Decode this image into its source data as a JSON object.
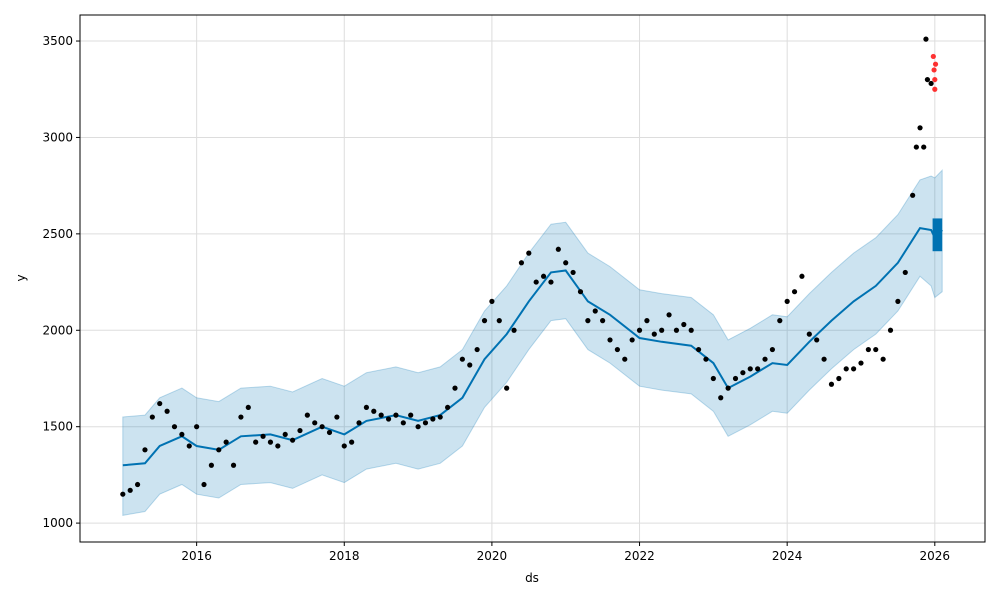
{
  "chart_data": {
    "type": "line",
    "title": "",
    "xlabel": "ds",
    "ylabel": "y",
    "xlim": [
      2014.42,
      2026.68
    ],
    "ylim": [
      902,
      3635
    ],
    "grid": true,
    "x_ticks": [
      2016,
      2018,
      2020,
      2022,
      2024,
      2026
    ],
    "x_tick_labels": [
      "2016",
      "2018",
      "2020",
      "2022",
      "2024",
      "2026"
    ],
    "y_ticks": [
      1000,
      1500,
      2000,
      2500,
      3000,
      3500
    ],
    "y_tick_labels": [
      "1000",
      "1500",
      "2000",
      "2500",
      "3000",
      "3500"
    ],
    "colors": {
      "forecast": "#0072B2",
      "band": "#0072B2",
      "observed": "#000000",
      "recent": "#ff0000"
    },
    "forecast": {
      "x": [
        2015.0,
        2015.3,
        2015.5,
        2015.8,
        2016.0,
        2016.3,
        2016.6,
        2017.0,
        2017.3,
        2017.7,
        2018.0,
        2018.3,
        2018.7,
        2019.0,
        2019.3,
        2019.6,
        2019.9,
        2020.2,
        2020.5,
        2020.8,
        2021.0,
        2021.3,
        2021.6,
        2022.0,
        2022.3,
        2022.7,
        2023.0,
        2023.2,
        2023.5,
        2023.8,
        2024.0,
        2024.3,
        2024.6,
        2024.9,
        2025.2,
        2025.5,
        2025.8,
        2025.95,
        2026.0,
        2026.1
      ],
      "yhat": [
        1300,
        1310,
        1400,
        1450,
        1400,
        1380,
        1450,
        1460,
        1430,
        1500,
        1460,
        1530,
        1560,
        1530,
        1560,
        1650,
        1850,
        1980,
        2150,
        2300,
        2310,
        2150,
        2080,
        1960,
        1940,
        1920,
        1830,
        1700,
        1760,
        1830,
        1820,
        1940,
        2050,
        2150,
        2230,
        2350,
        2530,
        2520,
        2480,
        2520
      ],
      "yhat_lower": [
        1040,
        1060,
        1150,
        1200,
        1150,
        1130,
        1200,
        1210,
        1180,
        1250,
        1210,
        1280,
        1310,
        1280,
        1310,
        1400,
        1600,
        1730,
        1900,
        2050,
        2060,
        1900,
        1830,
        1710,
        1690,
        1670,
        1580,
        1450,
        1510,
        1580,
        1570,
        1690,
        1800,
        1900,
        1980,
        2100,
        2280,
        2230,
        2170,
        2200
      ],
      "yhat_upper": [
        1550,
        1560,
        1650,
        1700,
        1650,
        1630,
        1700,
        1710,
        1680,
        1750,
        1710,
        1780,
        1810,
        1780,
        1810,
        1900,
        2100,
        2230,
        2400,
        2550,
        2560,
        2400,
        2330,
        2210,
        2190,
        2170,
        2080,
        1950,
        2010,
        2080,
        2070,
        2190,
        2300,
        2400,
        2480,
        2600,
        2780,
        2800,
        2790,
        2830
      ]
    },
    "observed": [
      [
        2015.0,
        1150
      ],
      [
        2015.1,
        1170
      ],
      [
        2015.2,
        1200
      ],
      [
        2015.3,
        1380
      ],
      [
        2015.4,
        1550
      ],
      [
        2015.5,
        1620
      ],
      [
        2015.6,
        1580
      ],
      [
        2015.7,
        1500
      ],
      [
        2015.8,
        1460
      ],
      [
        2015.9,
        1400
      ],
      [
        2016.0,
        1500
      ],
      [
        2016.1,
        1200
      ],
      [
        2016.2,
        1300
      ],
      [
        2016.3,
        1380
      ],
      [
        2016.4,
        1420
      ],
      [
        2016.5,
        1300
      ],
      [
        2016.6,
        1550
      ],
      [
        2016.7,
        1600
      ],
      [
        2016.8,
        1420
      ],
      [
        2016.9,
        1450
      ],
      [
        2017.0,
        1420
      ],
      [
        2017.1,
        1400
      ],
      [
        2017.2,
        1460
      ],
      [
        2017.3,
        1430
      ],
      [
        2017.4,
        1480
      ],
      [
        2017.5,
        1560
      ],
      [
        2017.6,
        1520
      ],
      [
        2017.7,
        1500
      ],
      [
        2017.8,
        1470
      ],
      [
        2017.9,
        1550
      ],
      [
        2018.0,
        1400
      ],
      [
        2018.1,
        1420
      ],
      [
        2018.2,
        1520
      ],
      [
        2018.3,
        1600
      ],
      [
        2018.4,
        1580
      ],
      [
        2018.5,
        1560
      ],
      [
        2018.6,
        1540
      ],
      [
        2018.7,
        1560
      ],
      [
        2018.8,
        1520
      ],
      [
        2018.9,
        1560
      ],
      [
        2019.0,
        1500
      ],
      [
        2019.1,
        1520
      ],
      [
        2019.2,
        1540
      ],
      [
        2019.3,
        1550
      ],
      [
        2019.4,
        1600
      ],
      [
        2019.5,
        1700
      ],
      [
        2019.6,
        1850
      ],
      [
        2019.7,
        1820
      ],
      [
        2019.8,
        1900
      ],
      [
        2019.9,
        2050
      ],
      [
        2020.0,
        2150
      ],
      [
        2020.1,
        2050
      ],
      [
        2020.2,
        1700
      ],
      [
        2020.3,
        2000
      ],
      [
        2020.4,
        2350
      ],
      [
        2020.5,
        2400
      ],
      [
        2020.6,
        2250
      ],
      [
        2020.7,
        2280
      ],
      [
        2020.8,
        2250
      ],
      [
        2020.9,
        2420
      ],
      [
        2021.0,
        2350
      ],
      [
        2021.1,
        2300
      ],
      [
        2021.2,
        2200
      ],
      [
        2021.3,
        2050
      ],
      [
        2021.4,
        2100
      ],
      [
        2021.5,
        2050
      ],
      [
        2021.6,
        1950
      ],
      [
        2021.7,
        1900
      ],
      [
        2021.8,
        1850
      ],
      [
        2021.9,
        1950
      ],
      [
        2022.0,
        2000
      ],
      [
        2022.1,
        2050
      ],
      [
        2022.2,
        1980
      ],
      [
        2022.3,
        2000
      ],
      [
        2022.4,
        2080
      ],
      [
        2022.5,
        2000
      ],
      [
        2022.6,
        2030
      ],
      [
        2022.7,
        2000
      ],
      [
        2022.8,
        1900
      ],
      [
        2022.9,
        1850
      ],
      [
        2023.0,
        1750
      ],
      [
        2023.1,
        1650
      ],
      [
        2023.2,
        1700
      ],
      [
        2023.3,
        1750
      ],
      [
        2023.4,
        1780
      ],
      [
        2023.5,
        1800
      ],
      [
        2023.6,
        1800
      ],
      [
        2023.7,
        1850
      ],
      [
        2023.8,
        1900
      ],
      [
        2023.9,
        2050
      ],
      [
        2024.0,
        2150
      ],
      [
        2024.1,
        2200
      ],
      [
        2024.2,
        2280
      ],
      [
        2024.3,
        1980
      ],
      [
        2024.4,
        1950
      ],
      [
        2024.5,
        1850
      ],
      [
        2024.6,
        1720
      ],
      [
        2024.7,
        1750
      ],
      [
        2024.8,
        1800
      ],
      [
        2024.9,
        1800
      ],
      [
        2025.0,
        1830
      ],
      [
        2025.1,
        1900
      ],
      [
        2025.2,
        1900
      ],
      [
        2025.3,
        1850
      ],
      [
        2025.4,
        2000
      ],
      [
        2025.5,
        2150
      ],
      [
        2025.6,
        2300
      ],
      [
        2025.7,
        2700
      ],
      [
        2025.75,
        2950
      ],
      [
        2025.8,
        3050
      ],
      [
        2025.85,
        2950
      ],
      [
        2025.88,
        3510
      ],
      [
        2025.9,
        3300
      ],
      [
        2025.95,
        3280
      ]
    ],
    "recent": [
      [
        2025.98,
        3420
      ],
      [
        2025.99,
        3350
      ],
      [
        2026.0,
        3250
      ],
      [
        2026.01,
        3380
      ],
      [
        2026.0,
        3300
      ]
    ]
  }
}
